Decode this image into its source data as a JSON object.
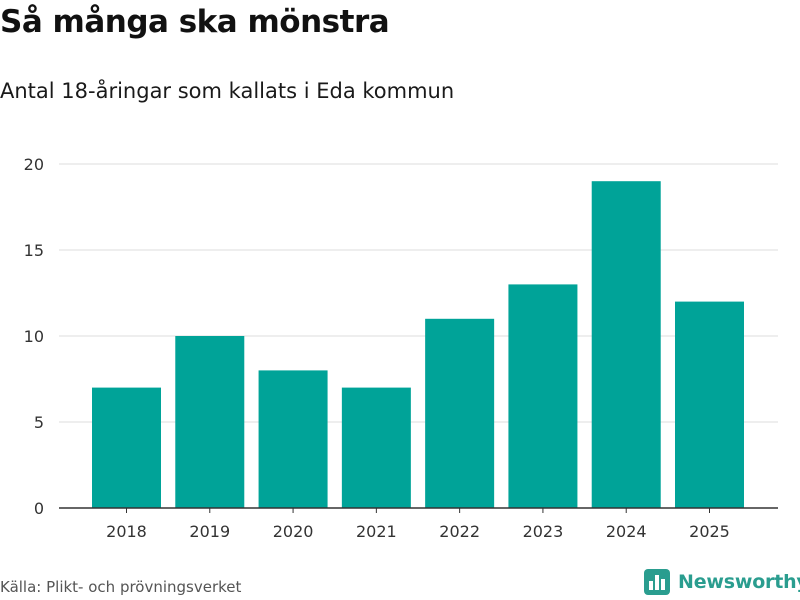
{
  "title": "Så många ska mönstra",
  "subtitle": "Antal 18-åringar som kallats i Eda kommun",
  "source": "Källa: Plikt- och prövningsverket",
  "brand": {
    "name": "Newsworthy",
    "logo_icon": "bar-chart-logo-icon",
    "color": "#2a9d8f"
  },
  "chart_data": {
    "type": "bar",
    "title": "Så många ska mönstra",
    "subtitle": "Antal 18-åringar som kallats i Eda kommun",
    "categories": [
      "2018",
      "2019",
      "2020",
      "2021",
      "2022",
      "2023",
      "2024",
      "2025"
    ],
    "values": [
      7,
      10,
      8,
      7,
      11,
      13,
      19,
      12
    ],
    "xlabel": "",
    "ylabel": "",
    "ylim": [
      0,
      20
    ],
    "yticks": [
      0,
      5,
      10,
      15,
      20
    ],
    "grid": true,
    "bar_color": "#00a398"
  }
}
